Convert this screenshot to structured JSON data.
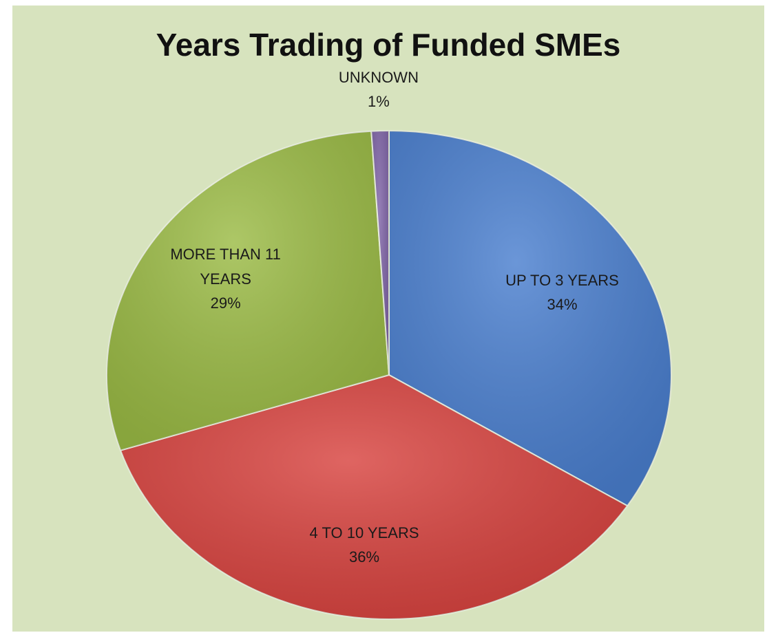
{
  "chart_data": {
    "type": "pie",
    "title": "Years Trading of Funded SMEs",
    "categories": [
      "UP TO 3 YEARS",
      "4 TO 10 YEARS",
      "MORE THAN 11 YEARS",
      "UNKNOWN"
    ],
    "values": [
      34,
      36,
      29,
      1
    ],
    "value_labels": [
      "34%",
      "36%",
      "29%",
      "1%"
    ],
    "colors": [
      "#4a7fcf",
      "#d8433f",
      "#9bbb45",
      "#8065a8"
    ]
  }
}
